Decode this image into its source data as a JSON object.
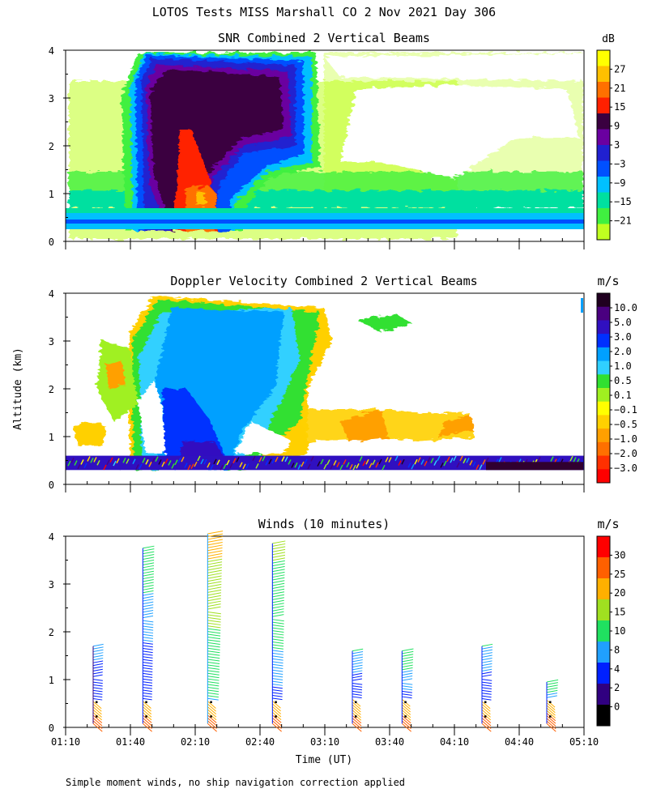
{
  "title": "LOTOS Tests MISS Marshall CO   2 Nov 2021 Day 306",
  "xlabel": "Time (UT)",
  "ylabel": "Altitude (km)",
  "footnote": "Simple moment winds, no ship navigation correction applied",
  "chart_data": [
    {
      "type": "heatmap",
      "title": "SNR Combined 2 Vertical Beams",
      "units": "dB",
      "ylim": [
        0,
        4
      ],
      "yticks": [
        "0",
        "1",
        "2",
        "3",
        "4"
      ],
      "colorbar": {
        "labels": [
          "27",
          "21",
          "15",
          "9",
          "3",
          "−3",
          "−9",
          "−15",
          "−21"
        ],
        "colors": [
          "#ffff00",
          "#ffc000",
          "#ff7000",
          "#ff2000",
          "#3a0040",
          "#6a00a0",
          "#2020d0",
          "#0050ff",
          "#00c0ff",
          "#00e0a0",
          "#40f040",
          "#c0ff20"
        ]
      },
      "features": {
        "surface_band_km": [
          0.3,
          0.6
        ],
        "echo_core": {
          "time_start": "01:51",
          "time_end": "02:46",
          "top_km": 4.0,
          "peak_db": 21
        }
      }
    },
    {
      "type": "heatmap",
      "title": "Doppler Velocity Combined 2 Vertical Beams",
      "units": "m/s",
      "ylim": [
        0,
        4
      ],
      "yticks": [
        "0",
        "1",
        "2",
        "3",
        "4"
      ],
      "colorbar": {
        "labels": [
          "10.0",
          "5.0",
          "3.0",
          "2.0",
          "1.0",
          "0.5",
          "0.1",
          "−0.1",
          "−0.5",
          "−1.0",
          "−2.0",
          "−3.0"
        ],
        "colors": [
          "#200020",
          "#4a0080",
          "#3010c0",
          "#0030ff",
          "#00a0ff",
          "#30d0ff",
          "#30e030",
          "#a0f020",
          "#ffff00",
          "#ffd000",
          "#ffa000",
          "#ff7000",
          "#ff3000",
          "#ff0000"
        ]
      },
      "features": {
        "surface_band_km": [
          0.3,
          0.6
        ],
        "downdraft_core": {
          "time_start": "01:52",
          "time_end": "02:31",
          "top_km": 3.9,
          "peak_ms": 2.0
        }
      }
    },
    {
      "type": "barbs",
      "title": "Winds (10 minutes)",
      "units": "m/s",
      "ylim": [
        0,
        4
      ],
      "yticks": [
        "0",
        "1",
        "2",
        "3",
        "4"
      ],
      "xticks": [
        "01:10",
        "01:40",
        "02:10",
        "02:40",
        "03:10",
        "03:40",
        "04:10",
        "04:40",
        "05:10"
      ],
      "colorbar": {
        "labels": [
          "30",
          "25",
          "20",
          "15",
          "10",
          "8",
          "4",
          "2",
          "0"
        ],
        "colors": [
          "#ff0000",
          "#ff6000",
          "#ffb000",
          "#a0e020",
          "#20e060",
          "#20a0ff",
          "#0020ff",
          "#300080",
          "#000000"
        ]
      },
      "profiles": [
        {
          "time": "01:25",
          "top_km": 1.7,
          "max_speed_ms": 9
        },
        {
          "time": "01:48",
          "top_km": 3.75,
          "max_speed_ms": 12
        },
        {
          "time": "02:18",
          "top_km": 4.05,
          "max_speed_ms": 22
        },
        {
          "time": "02:48",
          "top_km": 3.85,
          "max_speed_ms": 16
        },
        {
          "time": "03:25",
          "top_km": 1.6,
          "max_speed_ms": 10
        },
        {
          "time": "03:48",
          "top_km": 1.6,
          "max_speed_ms": 12
        },
        {
          "time": "04:25",
          "top_km": 1.7,
          "max_speed_ms": 10
        },
        {
          "time": "04:55",
          "top_km": 0.95,
          "max_speed_ms": 12
        }
      ]
    }
  ]
}
